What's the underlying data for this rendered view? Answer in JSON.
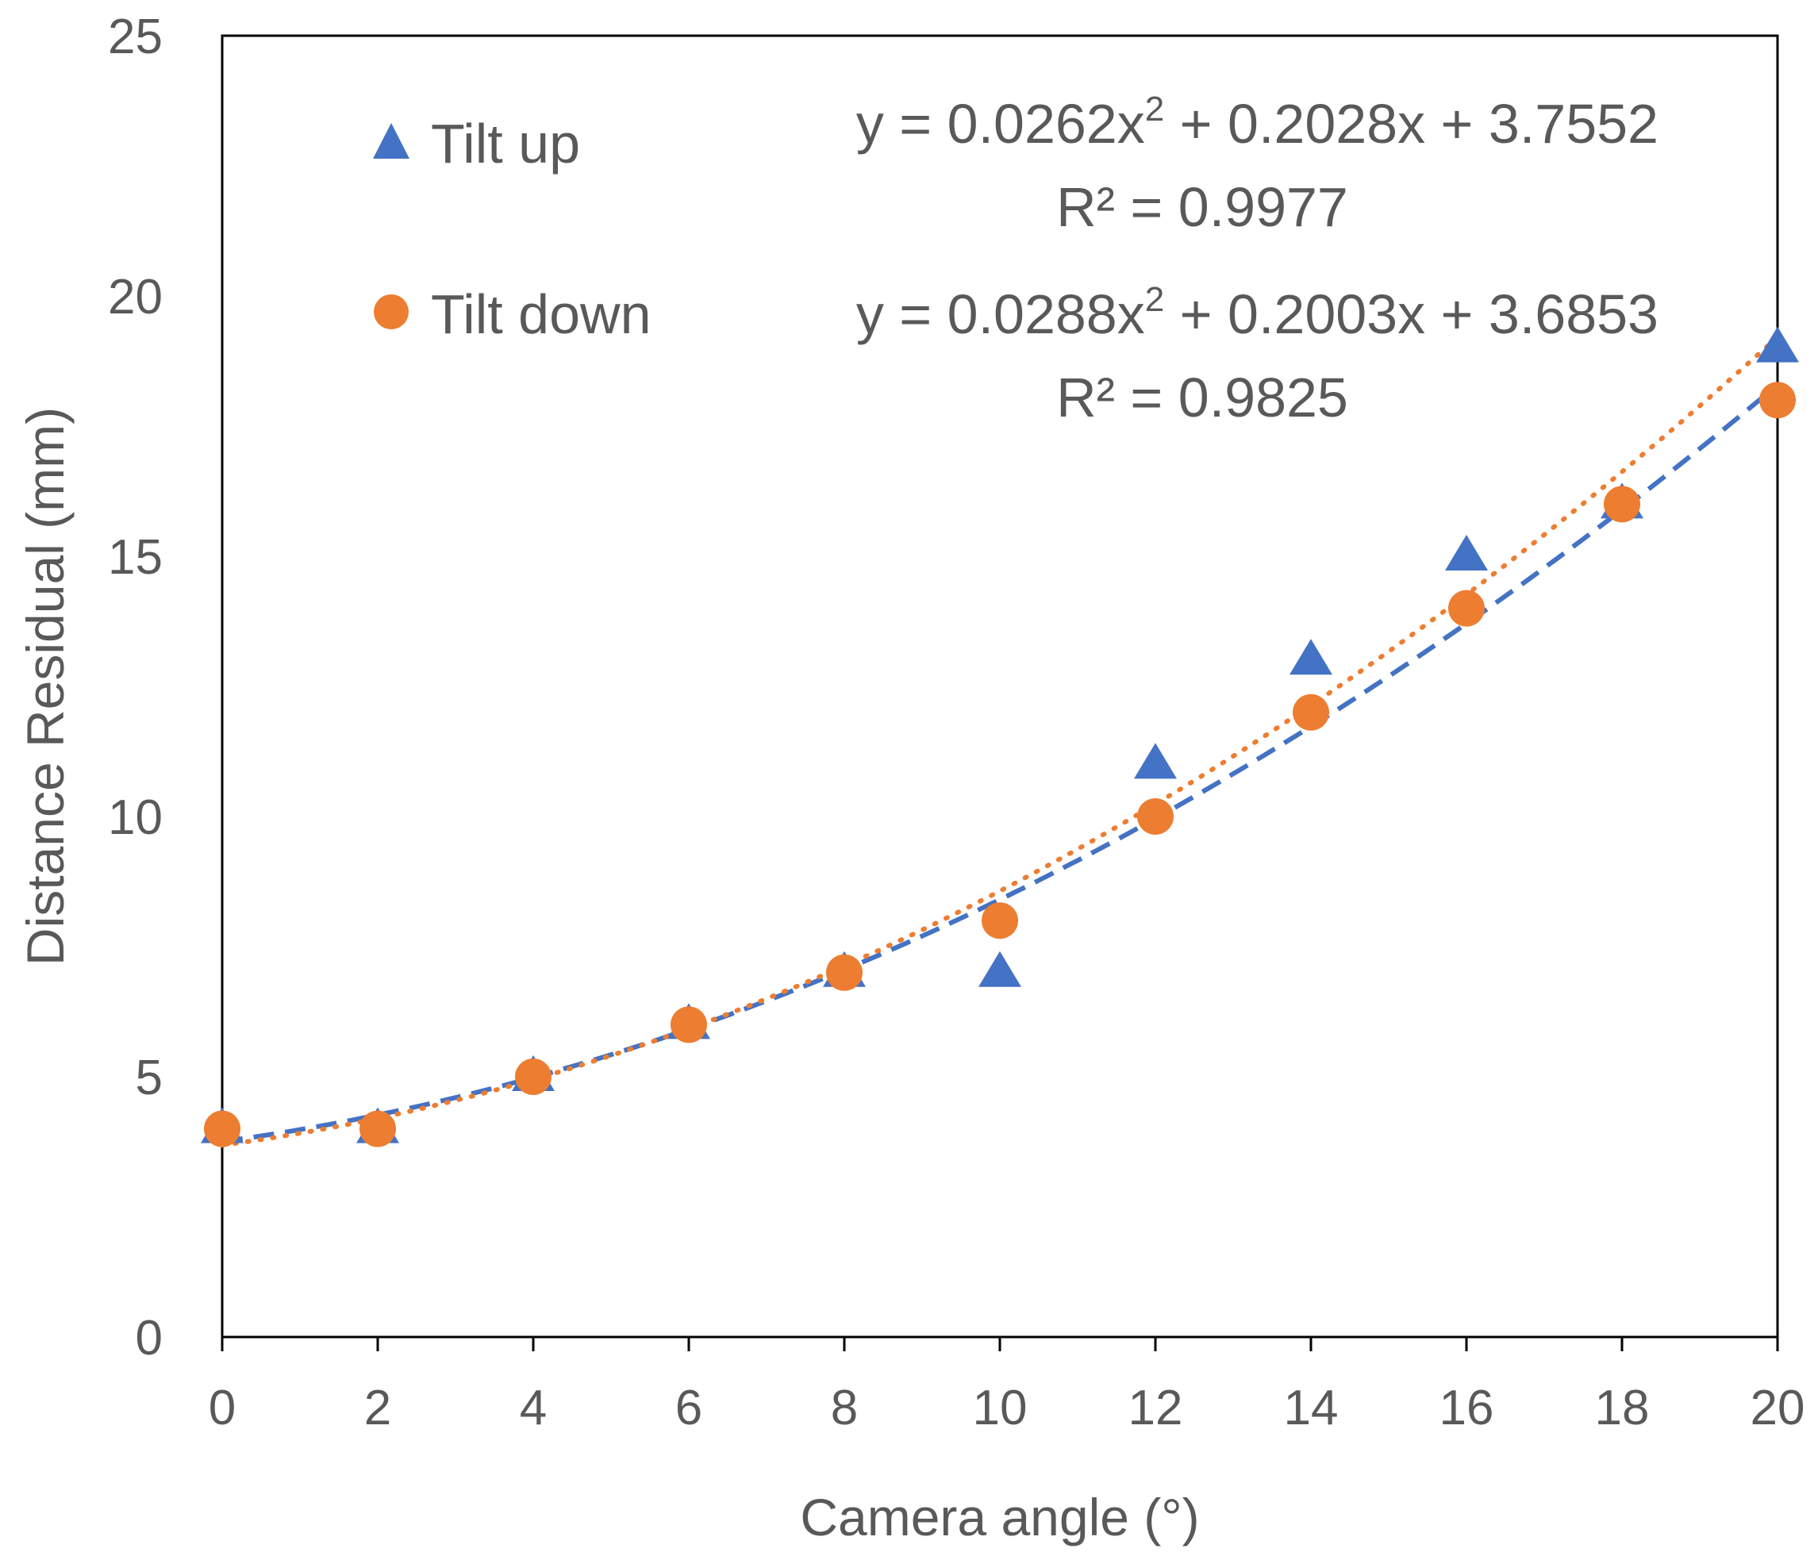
{
  "chart_data": {
    "type": "scatter",
    "title": "",
    "xlabel": "Camera angle (°)",
    "ylabel": "Distance Residual  (mm)",
    "xlim": [
      0,
      20
    ],
    "ylim": [
      0,
      25
    ],
    "xticks": [
      0,
      2,
      4,
      6,
      8,
      10,
      12,
      14,
      16,
      18,
      20
    ],
    "yticks": [
      0,
      5,
      10,
      15,
      20,
      25
    ],
    "grid": false,
    "legend_position": "top-left",
    "series": [
      {
        "name": "Tilt up",
        "marker": "triangle",
        "color": "#4472C4",
        "x": [
          0,
          2,
          4,
          6,
          8,
          10,
          12,
          14,
          16,
          18,
          20
        ],
        "values": [
          4,
          4,
          5,
          6,
          7,
          7,
          11,
          13,
          15,
          16,
          19
        ],
        "trendline": {
          "type": "polynomial",
          "style": "dashed",
          "coefficients": [
            0.0262,
            0.2028,
            3.7552
          ],
          "equation": "y = 0.0262x",
          "equation_sup": "2",
          "equation_rest": " + 0.2028x + 3.7552",
          "r2_label": "R² = 0.9977"
        }
      },
      {
        "name": "Tilt down",
        "marker": "circle",
        "color": "#ED7D31",
        "x": [
          0,
          2,
          4,
          6,
          8,
          10,
          12,
          14,
          16,
          18,
          20
        ],
        "values": [
          4,
          4,
          5,
          6,
          7,
          8,
          10,
          12,
          14,
          16,
          18
        ],
        "trendline": {
          "type": "polynomial",
          "style": "dotted",
          "coefficients": [
            0.0288,
            0.2003,
            3.6853
          ],
          "equation": "y = 0.0288x",
          "equation_sup": "2",
          "equation_rest": " + 0.2003x + 3.6853",
          "r2_label": "R² = 0.9825"
        }
      }
    ]
  }
}
